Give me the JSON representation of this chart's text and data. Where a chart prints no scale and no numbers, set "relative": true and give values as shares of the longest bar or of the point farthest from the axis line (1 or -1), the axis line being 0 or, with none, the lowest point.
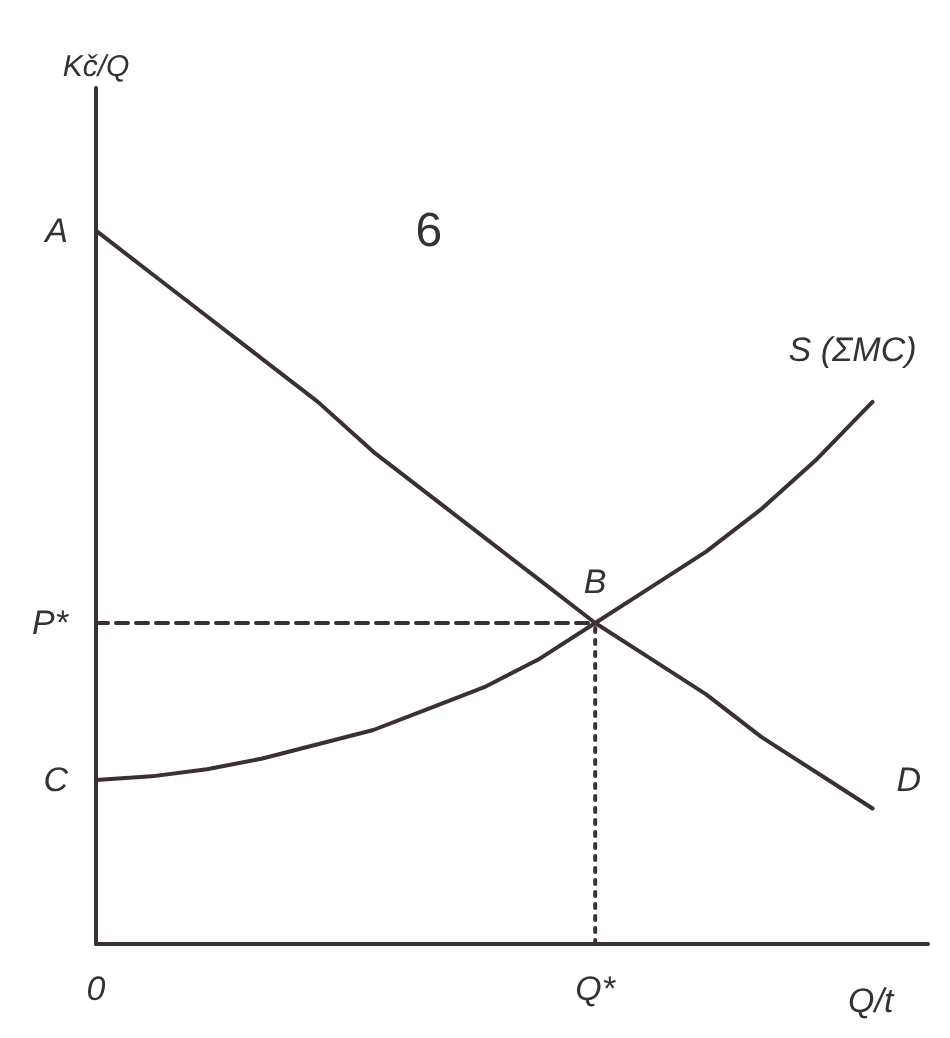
{
  "chart_data": {
    "type": "line",
    "relative": true,
    "xlabel": "Q/t",
    "ylabel": "Kč/Q",
    "categories": [
      "0",
      null,
      null,
      null,
      null,
      null,
      null,
      null,
      null,
      "Q*",
      null,
      null,
      null,
      null,
      null,
      null
    ],
    "line_style": "solid",
    "marker": "none",
    "grid": false,
    "legend": false,
    "series": [
      {
        "name": "D",
        "color": "#3a3030",
        "values": [
          1,
          0.94,
          0.88,
          0.82,
          0.76,
          0.69,
          0.63,
          0.57,
          0.51,
          0.45,
          0.4,
          0.35,
          0.29,
          0.24,
          0.19,
          null
        ]
      },
      {
        "name": "S (ΣMC)",
        "color": "#3a3030",
        "values": [
          0.23,
          0.235,
          0.245,
          0.26,
          0.28,
          0.3,
          0.33,
          0.36,
          0.4,
          0.45,
          0.5,
          0.55,
          0.61,
          0.68,
          0.76,
          null
        ]
      },
      {
        "color": "#3a3030",
        "values": [
          0.45,
          0.45,
          0.45,
          0.45,
          0.45,
          0.45,
          0.45,
          0.45,
          0.45,
          0.45,
          null,
          null,
          null,
          null,
          null,
          null
        ],
        "line_style": "dashed"
      },
      {
        "color": "#3a3030",
        "x": [
          "Q*",
          "Q*"
        ],
        "values": [
          0,
          0.45
        ],
        "line_style": "dotted"
      }
    ],
    "annotations": [
      "A",
      "P*",
      "C",
      {
        "text": "B",
        "x": "Q*",
        "y": 0.45
      },
      "6"
    ]
  }
}
